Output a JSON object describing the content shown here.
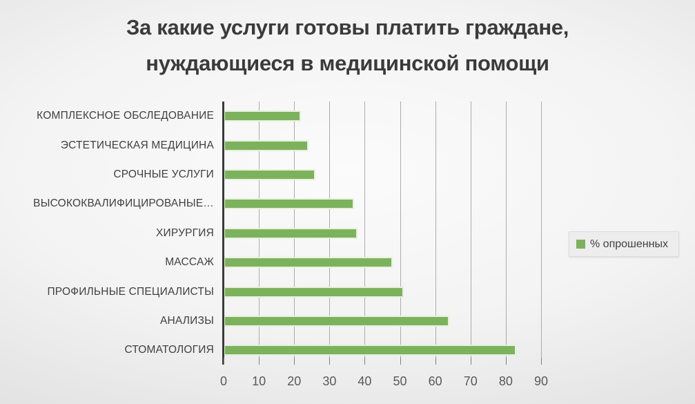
{
  "title": {
    "line1": "За какие услуги готовы платить граждане,",
    "line2": "нуждающиеся в медицинской помощи"
  },
  "legend": {
    "label": "% опрошенных",
    "marker_color": "#7cb25c"
  },
  "colors": {
    "bar_fill": "#7cb25c",
    "bar_border": "#e7f0dd",
    "axis_line": "#3a3a3a",
    "gridline": "#9f9f9f",
    "title_text": "#3b3b3b",
    "category_text": "#3f3f3f",
    "axis_text": "#595959",
    "legend_background": "#ededed"
  },
  "chart_data": {
    "type": "bar",
    "orientation": "horizontal",
    "title": "За какие услуги готовы платить граждане, нуждающиеся в медицинской помощи",
    "categories": [
      "КОМПЛЕКСНОЕ ОБСЛЕДОВАНИЕ",
      "ЭСТЕТИЧЕСКАЯ МЕДИЦИНА",
      "СРОЧНЫЕ УСЛУГИ",
      "ВЫСОКОКВАЛИФИЦИРОВАНЫЕ…",
      "ХИРУРГИЯ",
      "МАССАЖ",
      "ПРОФИЛЬНЫЕ СПЕЦИАЛИСТЫ",
      "АНАЛИЗЫ",
      "СТОМАТОЛОГИЯ"
    ],
    "series": [
      {
        "name": "% опрошенных",
        "values": [
          22,
          24,
          26,
          37,
          38,
          48,
          51,
          64,
          83
        ]
      }
    ],
    "xlabel": "",
    "ylabel": "",
    "x_ticks": [
      0,
      10,
      20,
      30,
      40,
      50,
      60,
      70,
      80,
      90
    ],
    "xlim": [
      0,
      90
    ],
    "grid": true,
    "legend_position": "middle-right"
  }
}
